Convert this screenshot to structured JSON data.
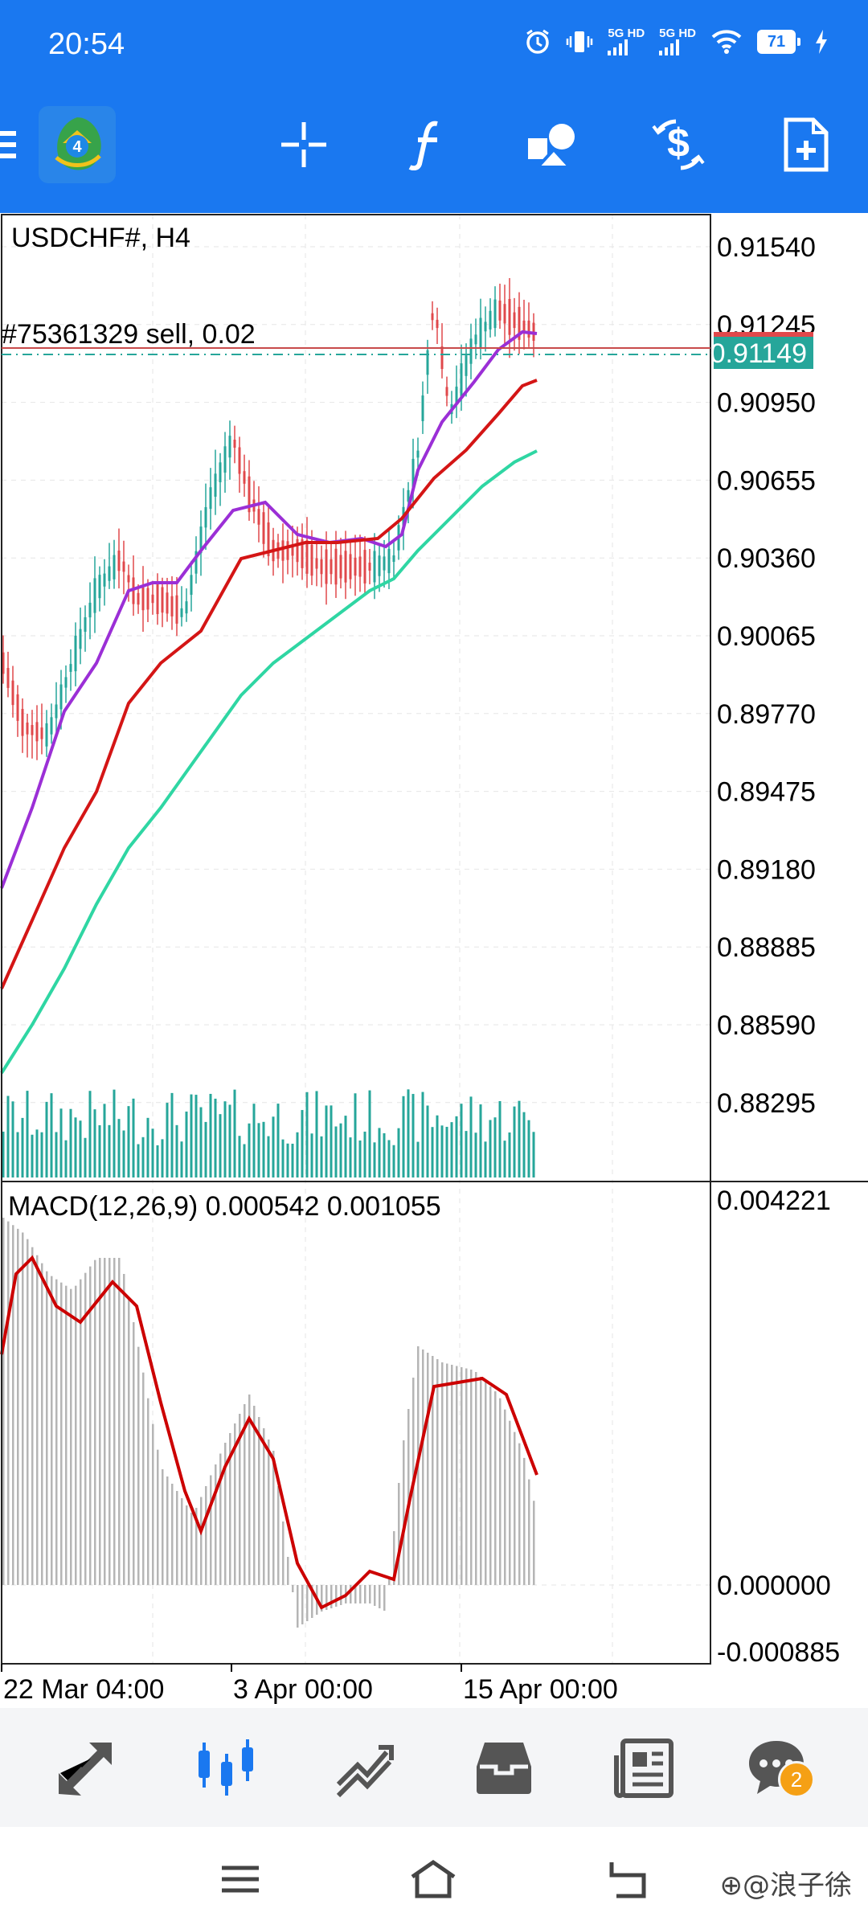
{
  "status_bar": {
    "time": "20:54",
    "signal1": "5G HD",
    "signal2": "5G HD",
    "battery": "71"
  },
  "toolbar": {
    "icons": [
      "menu-icon",
      "metatrader-logo",
      "crosshair-icon",
      "indicators-icon",
      "objects-icon",
      "trade-icon",
      "new-order-icon"
    ]
  },
  "chart": {
    "symbol_timeframe": "USDCHF#, H4",
    "order_label": "#75361329 sell, 0.02",
    "current_price": "0.91149",
    "price_ticks": [
      "0.91540",
      "0.91245",
      "0.90950",
      "0.90655",
      "0.90360",
      "0.90065",
      "0.89770",
      "0.89475",
      "0.89180",
      "0.88885",
      "0.88590",
      "0.88295"
    ],
    "macd_label": "MACD(12,26,9) 0.000542 0.001055",
    "macd_ticks": [
      "0.004221",
      "0.000000",
      "-0.000885"
    ],
    "date_ticks": [
      "22 Mar 04:00",
      "3 Apr 00:00",
      "15 Apr 00:00"
    ],
    "colors": {
      "bull": "#26a69a",
      "bear": "#e0484b",
      "ma_fast": "#9b2fd6",
      "ma_mid": "#d41515",
      "ma_slow": "#2fd6a3",
      "price_badge": "#26a69a",
      "macd_signal": "#cc0000"
    }
  },
  "bottom_nav": {
    "items": [
      "quotes-icon",
      "chart-icon",
      "trade-icon",
      "history-icon",
      "news-icon",
      "messages-icon"
    ],
    "messages_badge": "2"
  },
  "watermark": "⊕@浪子徐"
}
